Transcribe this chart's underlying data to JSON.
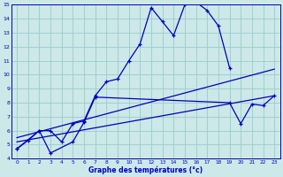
{
  "xlabel": "Graphe des températures (°c)",
  "xlim": [
    -0.5,
    23.5
  ],
  "ylim": [
    4,
    15
  ],
  "yticks": [
    4,
    5,
    6,
    7,
    8,
    9,
    10,
    11,
    12,
    13,
    14,
    15
  ],
  "xticks": [
    0,
    1,
    2,
    3,
    4,
    5,
    6,
    7,
    8,
    9,
    10,
    11,
    12,
    13,
    14,
    15,
    16,
    17,
    18,
    19,
    20,
    21,
    22,
    23
  ],
  "bg_color": "#cce8e8",
  "line_color": "#0000bb",
  "grid_color": "#99cccc",
  "line1_x": [
    0,
    1,
    2,
    3,
    4,
    5,
    6,
    7,
    8,
    9,
    10,
    11,
    12,
    13,
    14,
    15,
    16,
    17,
    18,
    19
  ],
  "line1_y": [
    4.7,
    5.3,
    6.0,
    6.0,
    5.2,
    6.5,
    6.7,
    8.5,
    9.5,
    9.7,
    11.0,
    12.2,
    14.8,
    13.8,
    12.8,
    15.0,
    15.2,
    14.6,
    13.5,
    10.5
  ],
  "line2_x": [
    0,
    2,
    3,
    5,
    6,
    7,
    19,
    20,
    21,
    22,
    23
  ],
  "line2_y": [
    4.7,
    6.0,
    4.4,
    5.2,
    6.6,
    8.4,
    8.0,
    6.5,
    7.9,
    7.8,
    8.5
  ],
  "line3_x": [
    0,
    23
  ],
  "line3_y": [
    5.5,
    10.4
  ],
  "line4_x": [
    0,
    23
  ],
  "line4_y": [
    5.2,
    8.5
  ]
}
